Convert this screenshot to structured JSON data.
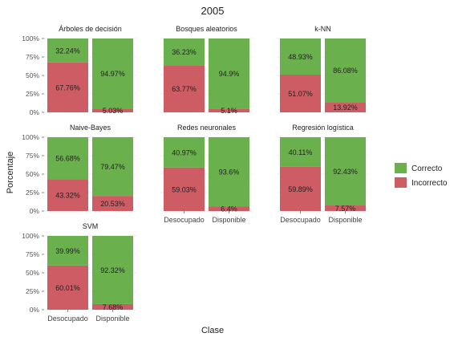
{
  "chart_data": {
    "type": "bar",
    "stacked": true,
    "title": "2005",
    "xlabel": "Clase",
    "ylabel": "Porcentaje",
    "categories": [
      "Desocupado",
      "Disponible"
    ],
    "y_ticks": [
      "0%",
      "25%",
      "50%",
      "75%",
      "100%"
    ],
    "ylim": [
      0,
      100
    ],
    "grid": true,
    "legend": {
      "position": "right",
      "items": [
        {
          "label": "Correcto",
          "color": "#6ab04c"
        },
        {
          "label": "Incorrecto",
          "color": "#cd5c64"
        }
      ]
    },
    "panels": [
      {
        "title": "Árboles de decisión",
        "incorrect": [
          67.76,
          5.03
        ],
        "correct": [
          32.24,
          94.97
        ],
        "incorrect_labels": [
          "67.76%",
          "5.03%"
        ],
        "correct_labels": [
          "32.24%",
          "94.97%"
        ]
      },
      {
        "title": "Bosques aleatorios",
        "incorrect": [
          63.77,
          5.1
        ],
        "correct": [
          36.23,
          94.9
        ],
        "incorrect_labels": [
          "63.77%",
          "5.1%"
        ],
        "correct_labels": [
          "36.23%",
          "94.9%"
        ]
      },
      {
        "title": "k-NN",
        "incorrect": [
          51.07,
          13.92
        ],
        "correct": [
          48.93,
          86.08
        ],
        "incorrect_labels": [
          "51.07%",
          "13.92%"
        ],
        "correct_labels": [
          "48.93%",
          "86.08%"
        ]
      },
      {
        "title": "Naive-Bayes",
        "incorrect": [
          43.32,
          20.53
        ],
        "correct": [
          56.68,
          79.47
        ],
        "incorrect_labels": [
          "43.32%",
          "20.53%"
        ],
        "correct_labels": [
          "56.68%",
          "79.47%"
        ]
      },
      {
        "title": "Redes neuronales",
        "incorrect": [
          59.03,
          6.4
        ],
        "correct": [
          40.97,
          93.6
        ],
        "incorrect_labels": [
          "59.03%",
          "6.4%"
        ],
        "correct_labels": [
          "40.97%",
          "93.6%"
        ]
      },
      {
        "title": "Regresión logística",
        "incorrect": [
          59.89,
          7.57
        ],
        "correct": [
          40.11,
          92.43
        ],
        "incorrect_labels": [
          "59.89%",
          "7.57%"
        ],
        "correct_labels": [
          "40.11%",
          "92.43%"
        ]
      },
      {
        "title": "SVM",
        "incorrect": [
          60.01,
          7.68
        ],
        "correct": [
          39.99,
          92.32
        ],
        "incorrect_labels": [
          "60.01%",
          "7.68%"
        ],
        "correct_labels": [
          "39.99%",
          "92.32%"
        ]
      }
    ]
  }
}
